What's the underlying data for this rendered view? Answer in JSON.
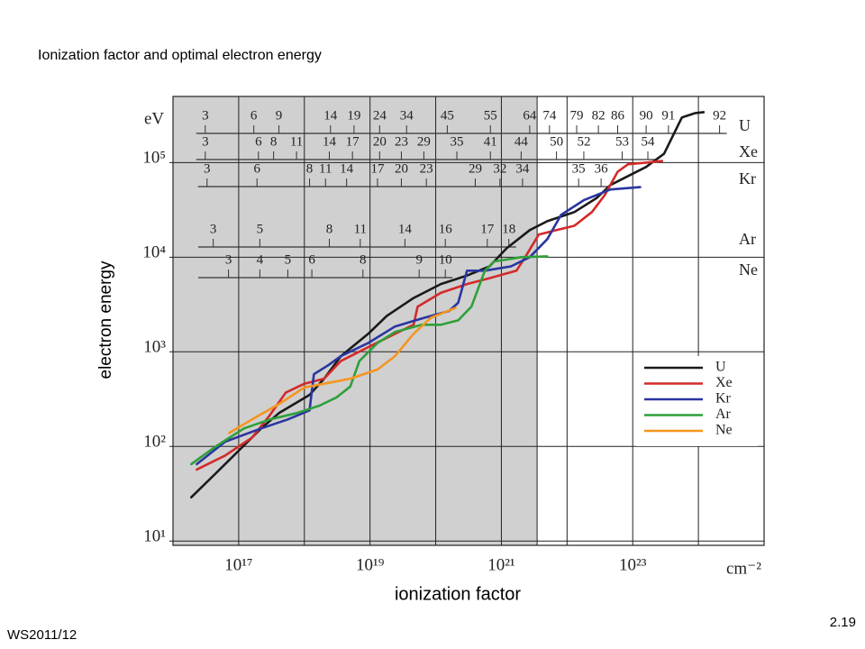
{
  "chart_data": {
    "type": "line",
    "title": "Ionization factor and optimal electron energy",
    "xlabel": "ionization factor",
    "ylabel": "electron energy",
    "xunit": "cm⁻²",
    "yunit": "eV",
    "log_x": true,
    "log_y": true,
    "grid": true,
    "legend": "right",
    "xlim": [
      1e+16,
      1e+25
    ],
    "ylim": [
      9,
      500000
    ],
    "xticks": [
      {
        "value": 1e+17,
        "label": "10¹⁷"
      },
      {
        "value": 1e+19,
        "label": "10¹⁹"
      },
      {
        "value": 1e+21,
        "label": "10²¹"
      },
      {
        "value": 1e+23,
        "label": "10²³"
      }
    ],
    "xgrid": [
      1e+18,
      1e+20,
      1e+22,
      1e+24
    ],
    "yticks": [
      {
        "value": 10,
        "label": "10¹"
      },
      {
        "value": 100,
        "label": "10²"
      },
      {
        "value": 1000,
        "label": "10³"
      },
      {
        "value": 10000,
        "label": "10⁴"
      },
      {
        "value": 100000,
        "label": "10⁵"
      }
    ],
    "shaded_region": [
      1e+16,
      3.5e+21
    ],
    "series": [
      {
        "name": "U",
        "color": "#1a1a1a",
        "x": [
          1.9e+16,
          4.5e+16,
          1e+17,
          2.2e+17,
          4.1e+17,
          1.2e+18,
          2e+18,
          3.6e+18,
          9.4e+18,
          1.8e+19,
          4.6e+19,
          1.2e+20,
          3e+20,
          6.6e+20,
          1.2e+21,
          2.7e+21,
          5e+21,
          1.3e+22,
          2.8e+22,
          4.6e+22,
          8.5e+22,
          1.6e+23,
          3e+23,
          4.1e+23,
          5.6e+23,
          9e+23,
          1.2e+24
        ],
        "values": [
          29,
          52,
          90,
          155,
          225,
          350,
          520,
          900,
          1550,
          2400,
          3700,
          5200,
          6400,
          8000,
          12400,
          19300,
          24000,
          30000,
          42000,
          58000,
          72000,
          90000,
          124000,
          193000,
          300000,
          334000,
          341000
        ]
      },
      {
        "name": "Xe",
        "color": "#d42a2a",
        "x": [
          2.3e+16,
          6.2e+16,
          1.6e+17,
          3e+17,
          5.2e+17,
          1e+18,
          2e+18,
          3.6e+18,
          9.4e+18,
          2.4e+19,
          4.6e+19,
          5.3e+19,
          1.2e+20,
          3e+20,
          6.6e+20,
          1.7e+21,
          2.3e+21,
          3.7e+21,
          6.9e+21,
          1.3e+22,
          2.4e+22,
          3.8e+22,
          5.9e+22,
          8.5e+22,
          1.6e+23,
          2.8e+23
        ],
        "values": [
          57,
          80,
          124,
          215,
          370,
          460,
          520,
          800,
          1120,
          1550,
          1930,
          3000,
          4200,
          5200,
          6000,
          7200,
          10000,
          17300,
          19300,
          21500,
          30000,
          46000,
          80000,
          96000,
          100000,
          104000
        ]
      },
      {
        "name": "Kr",
        "color": "#2a36a0",
        "x": [
          2.3e+16,
          6.2e+16,
          2.2e+17,
          5.6e+17,
          1.2e+18,
          1.4e+18,
          2.3e+18,
          3.6e+18,
          9.4e+18,
          2.4e+19,
          6.2e+19,
          1.6e+20,
          2.2e+20,
          3e+20,
          5.6e+20,
          1.4e+21,
          2.7e+21,
          5e+21,
          8.1e+21,
          1.8e+22,
          4.6e+22,
          1.3e+23
        ],
        "values": [
          65,
          112,
          155,
          193,
          240,
          580,
          720,
          900,
          1240,
          1850,
          2250,
          2700,
          3300,
          7200,
          7200,
          8000,
          10000,
          15500,
          28000,
          40000,
          52000,
          55000
        ]
      },
      {
        "name": "Ar",
        "color": "#2ea03a",
        "x": [
          1.9e+16,
          4.5e+16,
          1.2e+17,
          3e+17,
          7.6e+17,
          1.7e+18,
          3.1e+18,
          5e+18,
          6.9e+18,
          1.3e+19,
          2.4e+19,
          6.2e+19,
          1.2e+20,
          2.2e+20,
          3.5e+20,
          5.6e+20,
          7.7e+20,
          2e+21,
          5e+21
        ],
        "values": [
          65,
          100,
          155,
          193,
          225,
          270,
          330,
          430,
          800,
          1240,
          1620,
          1930,
          1930,
          2150,
          3000,
          7200,
          9000,
          10000,
          10200
        ]
      },
      {
        "name": "Ne",
        "color": "#f5951f",
        "x": [
          7.2e+16,
          1.6e+17,
          4.1e+17,
          1e+18,
          2e+18,
          5e+18,
          1.3e+19,
          2.4e+19,
          4.6e+19,
          8.5e+19,
          2e+20
        ],
        "values": [
          139,
          193,
          280,
          420,
          460,
          520,
          650,
          900,
          1550,
          2300,
          2900
        ]
      }
    ],
    "scales": [
      {
        "name": "U",
        "labels": [
          3,
          6,
          9,
          14,
          19,
          24,
          34,
          45,
          55,
          64,
          74,
          79,
          82,
          86,
          90,
          91,
          92
        ],
        "x": [
          3.1e+16,
          1.7e+17,
          4.1e+17,
          2.5e+18,
          5.7e+18,
          1.4e+19,
          3.6e+19,
          1.5e+20,
          6.8e+20,
          2.7e+21,
          5.4e+21,
          1.4e+22,
          3e+22,
          5.9e+22,
          1.6e+23,
          3.5e+23,
          2.1e+24
        ]
      },
      {
        "name": "Xe",
        "labels": [
          3,
          6,
          8,
          11,
          14,
          17,
          20,
          23,
          29,
          35,
          41,
          44,
          50,
          52,
          53,
          54
        ],
        "x": [
          3.1e+16,
          2e+17,
          3.4e+17,
          7.6e+17,
          2.4e+18,
          5.4e+18,
          1.4e+19,
          3e+19,
          6.6e+19,
          2.1e+20,
          6.8e+20,
          2e+21,
          6.9e+21,
          1.8e+22,
          6.9e+22,
          1.7e+23
        ]
      },
      {
        "name": "Kr",
        "labels": [
          3,
          6,
          8,
          11,
          14,
          17,
          20,
          23,
          29,
          32,
          34,
          35,
          36
        ],
        "x": [
          3.3e+16,
          1.9e+17,
          1.2e+18,
          2.1e+18,
          4.4e+18,
          1.3e+19,
          3e+19,
          7.2e+19,
          4e+20,
          9.5e+20,
          2.1e+21,
          1.5e+22,
          3.3e+22
        ]
      },
      {
        "name": "Ar",
        "labels": [
          3,
          5,
          8,
          11,
          14,
          16,
          17,
          18
        ],
        "x": [
          4.1e+16,
          2.1e+17,
          2.4e+18,
          7.1e+18,
          3.4e+19,
          1.4e+20,
          6.1e+20,
          1.3e+21
        ]
      },
      {
        "name": "Ne",
        "labels": [
          3,
          4,
          5,
          6,
          8,
          9,
          10
        ],
        "x": [
          7e+16,
          2.1e+17,
          5.6e+17,
          1.3e+18,
          7.8e+18,
          5.6e+19,
          1.4e+20
        ]
      }
    ]
  },
  "footer": {
    "left": "WS2011/12",
    "right": "2.19"
  }
}
